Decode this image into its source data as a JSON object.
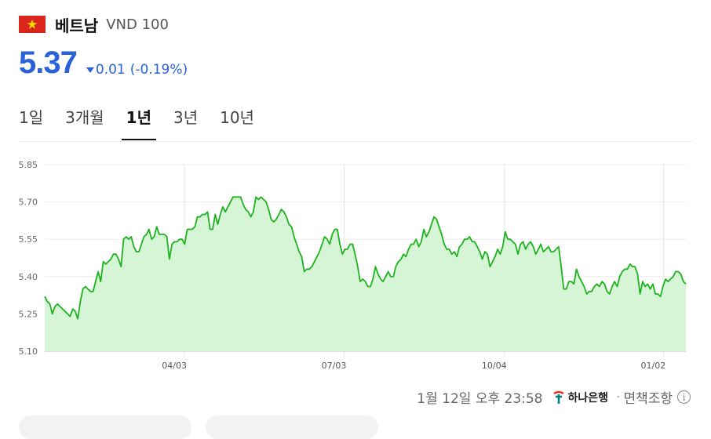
{
  "header": {
    "currency_name": "베트남",
    "currency_unit": "VND 100",
    "flag_icon": "vietnam-flag-icon"
  },
  "price": {
    "value": "5.37",
    "change": "0.01",
    "change_pct": "(-0.19%)",
    "direction_icon": "down-triangle-icon",
    "color": "#2a62d9"
  },
  "tabs": [
    {
      "label": "1일",
      "active": false
    },
    {
      "label": "3개월",
      "active": false
    },
    {
      "label": "1년",
      "active": true
    },
    {
      "label": "3년",
      "active": false
    },
    {
      "label": "10년",
      "active": false
    }
  ],
  "chart_data": {
    "type": "area",
    "ylim": [
      5.1,
      5.85
    ],
    "yticks": [
      "5.85",
      "5.70",
      "5.55",
      "5.40",
      "5.25",
      "5.10"
    ],
    "xticks": [
      "04/03",
      "07/03",
      "10/04",
      "01/02"
    ],
    "grid": true,
    "line_color": "#1db31d",
    "fill_color": "#d6f5d6",
    "series": [
      {
        "values": [
          5.32,
          5.3,
          5.29,
          5.25,
          5.28,
          5.29,
          5.28,
          5.27,
          5.26,
          5.25,
          5.24,
          5.27,
          5.26,
          5.23,
          5.3,
          5.35,
          5.36,
          5.35,
          5.34,
          5.34,
          5.38,
          5.42,
          5.38,
          5.46,
          5.45,
          5.46,
          5.47,
          5.49,
          5.49,
          5.47,
          5.44,
          5.55,
          5.56,
          5.55,
          5.56,
          5.52,
          5.5,
          5.5,
          5.53,
          5.56,
          5.57,
          5.59,
          5.55,
          5.56,
          5.6,
          5.57,
          5.57,
          5.57,
          5.56,
          5.47,
          5.53,
          5.54,
          5.54,
          5.55,
          5.55,
          5.53,
          5.59,
          5.59,
          5.59,
          5.6,
          5.64,
          5.64,
          5.65,
          5.65,
          5.66,
          5.59,
          5.59,
          5.65,
          5.61,
          5.65,
          5.68,
          5.66,
          5.68,
          5.7,
          5.72,
          5.72,
          5.72,
          5.72,
          5.69,
          5.67,
          5.66,
          5.64,
          5.66,
          5.72,
          5.71,
          5.72,
          5.71,
          5.7,
          5.67,
          5.63,
          5.62,
          5.63,
          5.65,
          5.67,
          5.66,
          5.64,
          5.61,
          5.6,
          5.56,
          5.53,
          5.5,
          5.48,
          5.42,
          5.43,
          5.43,
          5.44,
          5.46,
          5.48,
          5.5,
          5.53,
          5.56,
          5.55,
          5.53,
          5.57,
          5.59,
          5.59,
          5.53,
          5.49,
          5.51,
          5.51,
          5.53,
          5.53,
          5.49,
          5.44,
          5.38,
          5.39,
          5.38,
          5.36,
          5.36,
          5.39,
          5.44,
          5.41,
          5.39,
          5.38,
          5.4,
          5.42,
          5.4,
          5.4,
          5.44,
          5.46,
          5.47,
          5.49,
          5.48,
          5.51,
          5.53,
          5.53,
          5.55,
          5.52,
          5.54,
          5.59,
          5.56,
          5.58,
          5.61,
          5.64,
          5.63,
          5.6,
          5.57,
          5.53,
          5.51,
          5.51,
          5.49,
          5.5,
          5.48,
          5.52,
          5.53,
          5.55,
          5.55,
          5.56,
          5.54,
          5.54,
          5.52,
          5.5,
          5.47,
          5.5,
          5.49,
          5.44,
          5.46,
          5.48,
          5.51,
          5.49,
          5.52,
          5.58,
          5.55,
          5.55,
          5.54,
          5.53,
          5.49,
          5.53,
          5.54,
          5.51,
          5.53,
          5.54,
          5.52,
          5.49,
          5.51,
          5.53,
          5.5,
          5.51,
          5.52,
          5.5,
          5.5,
          5.51,
          5.52,
          5.44,
          5.35,
          5.35,
          5.38,
          5.38,
          5.37,
          5.43,
          5.4,
          5.38,
          5.36,
          5.33,
          5.34,
          5.34,
          5.36,
          5.37,
          5.36,
          5.38,
          5.37,
          5.34,
          5.33,
          5.36,
          5.38,
          5.36,
          5.4,
          5.42,
          5.43,
          5.43,
          5.45,
          5.44,
          5.44,
          5.41,
          5.33,
          5.38,
          5.36,
          5.37,
          5.35,
          5.37,
          5.33,
          5.33,
          5.32,
          5.36,
          5.39,
          5.38,
          5.39,
          5.4,
          5.42,
          5.42,
          5.41,
          5.38,
          5.37
        ]
      }
    ]
  },
  "footer": {
    "timestamp": "1월 12일 오후 23:58",
    "bank_name": "하나은행",
    "separator": "·",
    "disclaimer": "면책조항",
    "info_icon": "info-icon"
  }
}
